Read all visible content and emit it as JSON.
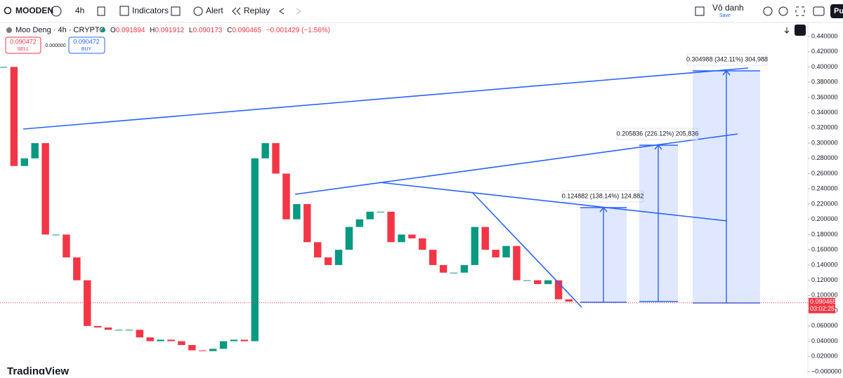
{
  "toolbar": {
    "symbol": "MOODEN",
    "interval": "4h",
    "indicators": "Indicators",
    "alert": "Alert",
    "replay": "Replay",
    "user": "Vô danh",
    "save": "Save",
    "publish": "Pu"
  },
  "legend": {
    "title": "Moo Deng · 4h · CRYPTO",
    "open_label": "O",
    "open": "0.091894",
    "high_label": "H",
    "high": "0.091912",
    "low_label": "L",
    "low": "0.090173",
    "close_label": "C",
    "close": "0.090465",
    "change": "−0.001429 (−1.56%)"
  },
  "trade": {
    "sell_price": "0.090472",
    "sell": "SELL",
    "spread": "0.000000",
    "buy_price": "0.090472",
    "buy": "BUY"
  },
  "chart_data": {
    "type": "candlestick",
    "ylim": [
      0,
      0.44
    ],
    "yticks": [
      {
        "value": 0.44,
        "label": "0.440000"
      },
      {
        "value": 0.42,
        "label": "0.420000"
      },
      {
        "value": 0.4,
        "label": "0.400000"
      },
      {
        "value": 0.38,
        "label": "0.380000"
      },
      {
        "value": 0.36,
        "label": "0.360000"
      },
      {
        "value": 0.34,
        "label": "0.340000"
      },
      {
        "value": 0.32,
        "label": "0.320000"
      },
      {
        "value": 0.3,
        "label": "0.300000"
      },
      {
        "value": 0.28,
        "label": "0.280000"
      },
      {
        "value": 0.26,
        "label": "0.260000"
      },
      {
        "value": 0.24,
        "label": "0.240000"
      },
      {
        "value": 0.22,
        "label": "0.220000"
      },
      {
        "value": 0.2,
        "label": "0.200000"
      },
      {
        "value": 0.18,
        "label": "0.180000"
      },
      {
        "value": 0.16,
        "label": "0.160000"
      },
      {
        "value": 0.14,
        "label": "0.140000"
      },
      {
        "value": 0.12,
        "label": "0.120000"
      },
      {
        "value": 0.1,
        "label": "0.100000"
      },
      {
        "value": 0.08,
        "label": "0.080000"
      },
      {
        "value": 0.06,
        "label": "0.060000"
      },
      {
        "value": 0.04,
        "label": "0.040000"
      },
      {
        "value": 0.02,
        "label": "0.020000"
      },
      {
        "value": 0,
        "label": "−0.000000"
      }
    ],
    "up_color": "#089981",
    "down_color": "#f23645",
    "closes": [
      0.4,
      0.27,
      0.28,
      0.3,
      0.18,
      0.18,
      0.15,
      0.12,
      0.06,
      0.058,
      0.055,
      0.055,
      0.055,
      0.045,
      0.04,
      0.042,
      0.04,
      0.035,
      0.028,
      0.027,
      0.03,
      0.04,
      0.042,
      0.04,
      0.28,
      0.3,
      0.26,
      0.2,
      0.22,
      0.17,
      0.15,
      0.14,
      0.16,
      0.19,
      0.2,
      0.21,
      0.21,
      0.17,
      0.18,
      0.175,
      0.16,
      0.14,
      0.13,
      0.13,
      0.14,
      0.19,
      0.16,
      0.15,
      0.165,
      0.12,
      0.12,
      0.115,
      0.12,
      0.095,
      0.092
    ],
    "last_price": {
      "value": 0.090465,
      "label": "0.090465",
      "countdown": "03:02:25"
    }
  },
  "measures": [
    {
      "label": "0.124882 (138.14%) 124,882"
    },
    {
      "label": "0.205836 (226.12%) 205,836"
    },
    {
      "label": "0.304988 (342.11%) 304,988"
    }
  ],
  "branding": "TradingView"
}
